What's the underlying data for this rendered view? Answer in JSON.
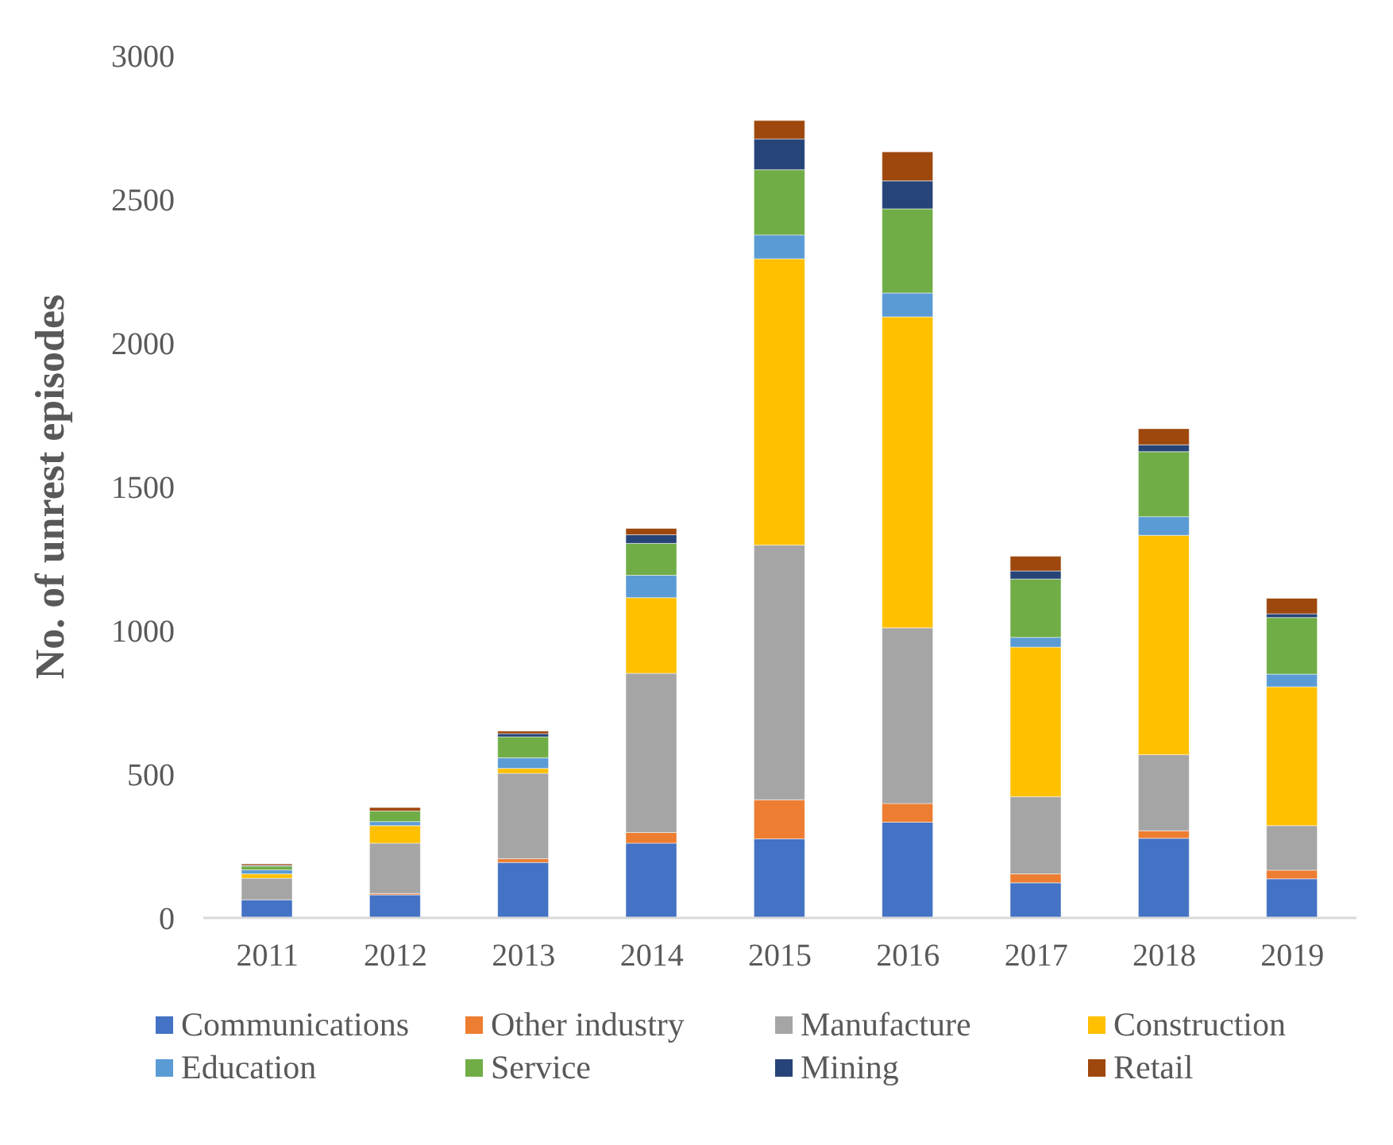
{
  "chart_data": {
    "type": "bar",
    "stacked": true,
    "ylabel": "No. of unrest episodes",
    "categories": [
      "2011",
      "2012",
      "2013",
      "2014",
      "2015",
      "2016",
      "2017",
      "2018",
      "2019"
    ],
    "ylim": [
      0,
      3000
    ],
    "yticks": [
      0,
      500,
      1000,
      1500,
      2000,
      2500,
      3000
    ],
    "grid": false,
    "legend": "bottom",
    "series": [
      {
        "name": "Communications",
        "color": "#4472c4",
        "values": [
          63,
          80,
          193,
          260,
          275,
          333,
          122,
          277,
          136
        ]
      },
      {
        "name": "Other industry",
        "color": "#ed7d31",
        "values": [
          null,
          5,
          13,
          37,
          136,
          65,
          31,
          26,
          30
        ]
      },
      {
        "name": "Manufacture",
        "color": "#a5a5a5",
        "values": [
          75,
          175,
          297,
          554,
          886,
          611,
          269,
          265,
          155
        ]
      },
      {
        "name": "Construction",
        "color": "#ffc000",
        "values": [
          15,
          61,
          17,
          263,
          996,
          1082,
          520,
          763,
          483
        ]
      },
      {
        "name": "Education",
        "color": "#5b9bd5",
        "values": [
          14,
          14,
          37,
          78,
          83,
          83,
          34,
          65,
          44
        ]
      },
      {
        "name": "Service",
        "color": "#70ad47",
        "values": [
          13,
          37,
          73,
          111,
          227,
          293,
          203,
          226,
          197
        ]
      },
      {
        "name": "Mining",
        "color": "#264478",
        "values": [
          3,
          null,
          11,
          30,
          107,
          97,
          28,
          24,
          13
        ]
      },
      {
        "name": "Retail",
        "color": "#9e480e",
        "values": [
          5,
          12,
          9,
          22,
          64,
          101,
          51,
          56,
          54
        ]
      }
    ]
  }
}
